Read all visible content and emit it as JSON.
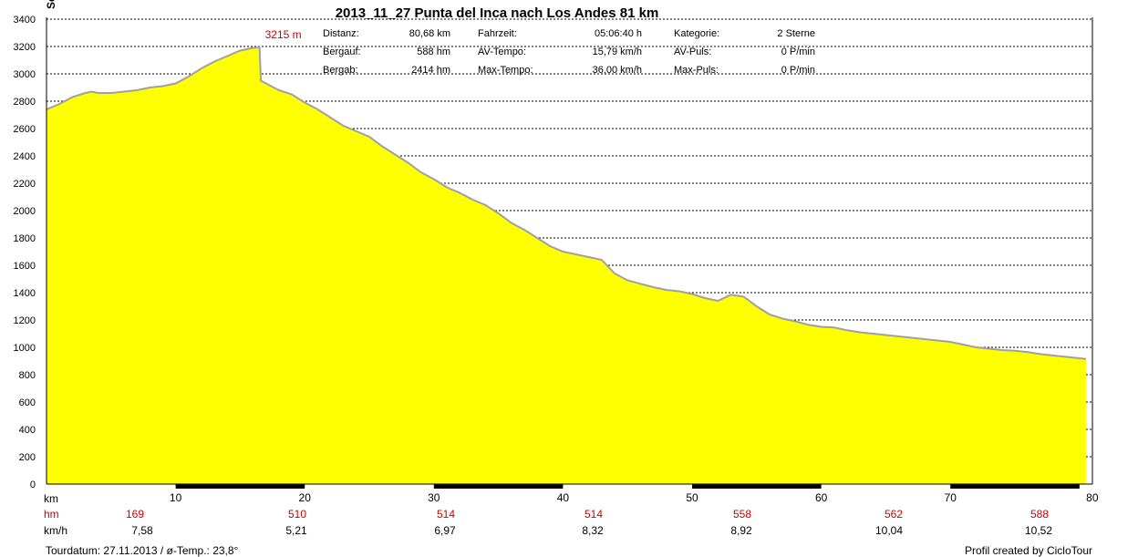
{
  "chart_data": {
    "type": "area",
    "title": "2013_11_27 Punta del Inca nach Los Andes 81 km",
    "ylabel_fragment": "Se",
    "xlabel": "km",
    "xlim": [
      0,
      81
    ],
    "ylim": [
      0,
      3400
    ],
    "x_ticks": [
      10,
      20,
      30,
      40,
      50,
      60,
      70,
      80
    ],
    "y_ticks": [
      0,
      200,
      400,
      600,
      800,
      1000,
      1200,
      1400,
      1600,
      1800,
      2000,
      2200,
      2400,
      2600,
      2800,
      3000,
      3200,
      3400
    ],
    "grid": "horizontal dashed",
    "fill_color": "#ffff00",
    "line_color": "#a0a0a0",
    "max_label": "3215 m",
    "max_point": {
      "x": 16.5,
      "y": 3195
    },
    "series": [
      {
        "x": [
          0,
          1,
          2,
          3,
          3.5,
          4,
          5,
          6,
          7,
          8,
          9,
          10,
          11,
          12,
          13,
          14,
          15,
          16,
          16.5,
          16.6,
          17,
          18,
          19,
          20,
          21,
          22,
          23,
          24,
          25,
          26,
          27,
          28,
          29,
          30,
          31,
          32,
          33,
          34,
          35,
          36,
          37,
          38,
          39,
          40,
          41,
          42,
          43,
          44,
          45,
          46,
          47,
          48,
          49,
          50,
          51,
          52,
          53,
          54,
          55,
          56,
          57,
          58,
          59,
          60,
          61,
          62,
          63,
          64,
          65,
          66,
          67,
          68,
          69,
          70,
          71,
          72,
          73,
          74,
          75,
          76,
          77,
          78,
          79,
          80,
          80.5
        ],
        "y": [
          2740,
          2780,
          2830,
          2860,
          2870,
          2860,
          2860,
          2870,
          2880,
          2900,
          2910,
          2930,
          2980,
          3040,
          3090,
          3130,
          3170,
          3190,
          3195,
          2950,
          2930,
          2880,
          2850,
          2790,
          2740,
          2680,
          2620,
          2580,
          2540,
          2470,
          2410,
          2350,
          2280,
          2230,
          2170,
          2130,
          2080,
          2040,
          1980,
          1910,
          1860,
          1800,
          1740,
          1700,
          1680,
          1660,
          1640,
          1540,
          1490,
          1465,
          1440,
          1420,
          1410,
          1390,
          1360,
          1340,
          1385,
          1370,
          1300,
          1240,
          1210,
          1190,
          1165,
          1150,
          1145,
          1125,
          1110,
          1100,
          1090,
          1080,
          1070,
          1060,
          1050,
          1040,
          1020,
          1000,
          990,
          980,
          975,
          965,
          950,
          940,
          930,
          920,
          915
        ]
      }
    ]
  },
  "stats": {
    "distanz_label": "Distanz:",
    "distanz_value": "80,68 km",
    "bergauf_label": "Bergauf:",
    "bergauf_value": "588 hm",
    "bergab_label": "Bergab:",
    "bergab_value": "2414 hm",
    "fahrzeit_label": "Fahrzeit:",
    "fahrzeit_value": "05:06:40 h",
    "avtempo_label": "AV-Tempo:",
    "avtempo_value": "15,79 km/h",
    "maxtempo_label": "Max-Tempo:",
    "maxtempo_value": "36,00 km/h",
    "kategorie_label": "Kategorie:",
    "kategorie_value": "2 Sterne",
    "avpuls_label": "AV-Puls:",
    "avpuls_value": "0 P/min",
    "maxpuls_label": "Max-Puls:",
    "maxpuls_value": "0 P/min"
  },
  "segments": {
    "row_labels": {
      "km": "km",
      "hm": "hm",
      "kmh": "km/h"
    },
    "hm_values": [
      "169",
      "510",
      "514",
      "514",
      "558",
      "562",
      "588"
    ],
    "kmh_values": [
      "7,58",
      "5,21",
      "6,97",
      "8,32",
      "8,92",
      "10,04",
      "10,52"
    ],
    "segment_bars": [
      [
        10,
        20
      ],
      [
        30,
        40
      ],
      [
        50,
        60
      ],
      [
        70,
        80
      ]
    ],
    "last_km_label": "80"
  },
  "footer": {
    "tourdatum": "Tourdatum: 27.11.2013  /  ø-Temp.: 23,8°",
    "credit": "Profil created by CicloTour"
  }
}
